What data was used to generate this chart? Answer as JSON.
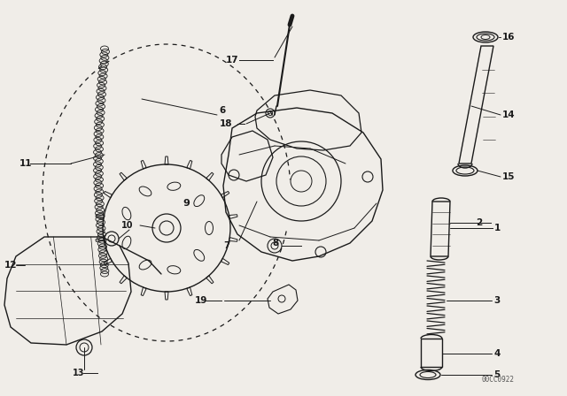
{
  "bg_color": "#f0ede8",
  "line_color": "#1a1a1a",
  "watermark": "00CC0922",
  "fig_w": 6.4,
  "fig_h": 4.48,
  "dpi": 100
}
